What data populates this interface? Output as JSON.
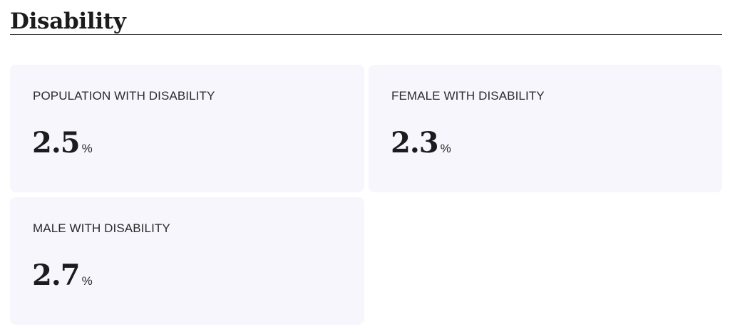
{
  "section": {
    "title": "Disability"
  },
  "cards": [
    {
      "label": "POPULATION WITH DISABILITY",
      "value": "2.5",
      "unit": "%"
    },
    {
      "label": "FEMALE WITH DISABILITY",
      "value": "2.3",
      "unit": "%"
    },
    {
      "label": "MALE WITH DISABILITY",
      "value": "2.7",
      "unit": "%"
    }
  ],
  "colors": {
    "card_background": "#f7f6fd",
    "text_primary": "#1c1c1e",
    "rule": "#3a3a3c"
  }
}
